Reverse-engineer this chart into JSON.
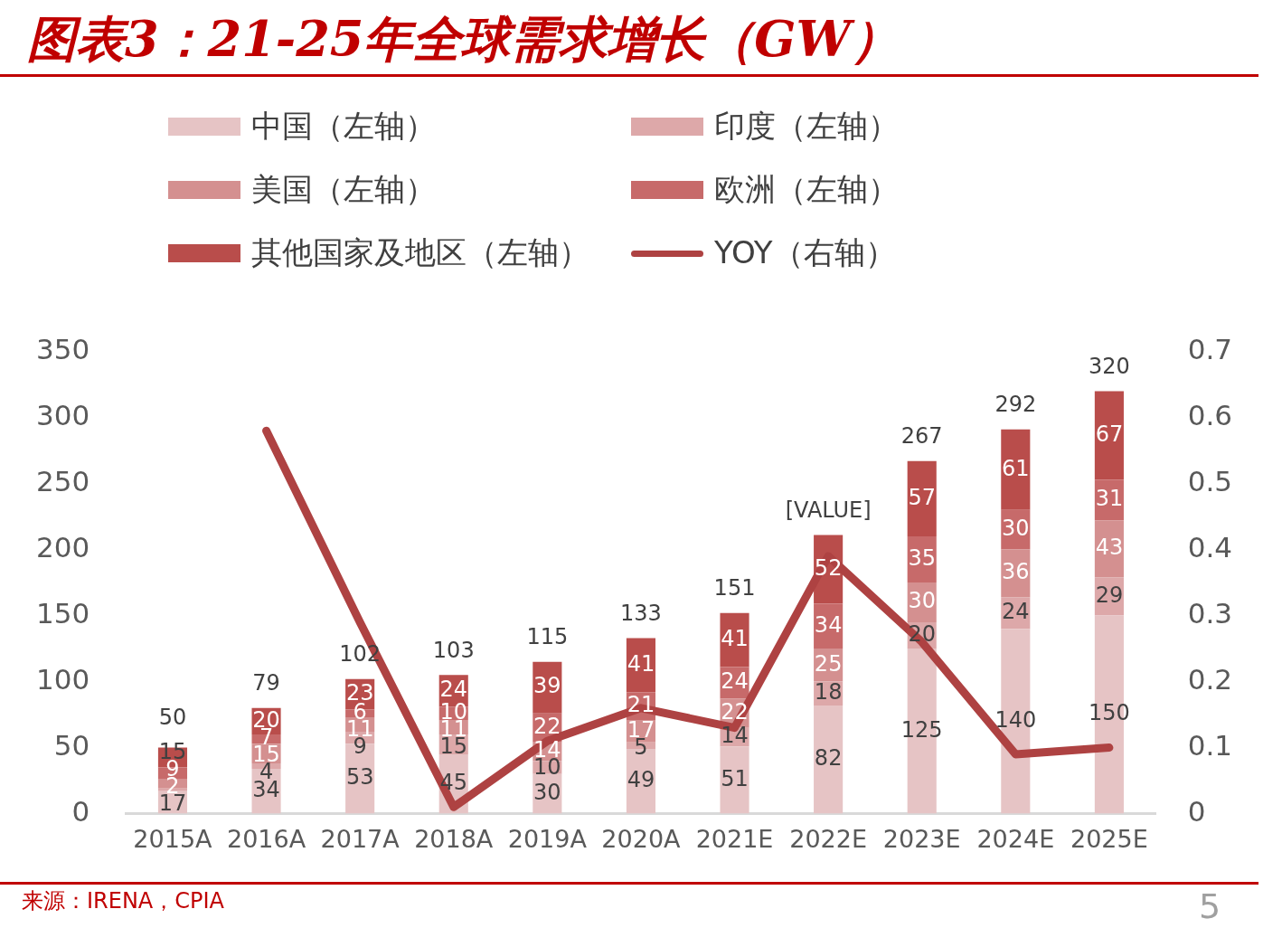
{
  "chart_data": {
    "type": "bar",
    "stacked": true,
    "title": "图表3：21-25年全球需求增长（GW）",
    "categories": [
      "2015A",
      "2016A",
      "2017A",
      "2018A",
      "2019A",
      "2020A",
      "2021E",
      "2022E",
      "2023E",
      "2024E",
      "2025E"
    ],
    "series": [
      {
        "name": "中国（左轴）",
        "color": "#e6c4c5",
        "values": [
          17,
          34,
          53,
          45,
          30,
          49,
          51,
          82,
          125,
          140,
          150
        ],
        "value_labels": [
          "17",
          "34",
          "53",
          "45",
          "30",
          "49",
          "51",
          "82",
          "125",
          "140",
          "150"
        ]
      },
      {
        "name": "印度（左轴）",
        "color": "#dda8a9",
        "values": [
          2,
          4,
          9,
          15,
          10,
          5,
          14,
          18,
          20,
          24,
          29
        ],
        "value_labels": [
          "2",
          "4",
          "9",
          "15",
          "10",
          "5",
          "14",
          "18",
          "20",
          "24",
          "29"
        ]
      },
      {
        "name": "美国（左轴）",
        "color": "#d49090",
        "values": [
          7,
          15,
          11,
          11,
          14,
          17,
          22,
          25,
          30,
          36,
          43
        ],
        "value_labels": [
          null,
          "15",
          "11",
          "11",
          "14",
          "17",
          "22",
          "25",
          "30",
          "36",
          "43"
        ]
      },
      {
        "name": "欧洲（左轴）",
        "color": "#c76a6a",
        "values": [
          9,
          7,
          6,
          10,
          22,
          21,
          24,
          34,
          35,
          30,
          31
        ],
        "value_labels": [
          "9",
          "7",
          "6",
          "10",
          "22",
          "21",
          "24",
          "34",
          "35",
          "30",
          "31"
        ]
      },
      {
        "name": "其他国家及地区（左轴）",
        "color": "#b94d4b",
        "values": [
          15,
          20,
          23,
          24,
          39,
          41,
          41,
          52,
          57,
          61,
          67
        ],
        "value_labels": [
          "15",
          "20",
          "23",
          "24",
          "39",
          "41",
          "41",
          "52",
          "57",
          "61",
          "67"
        ]
      },
      {
        "name": "YOY（右轴）",
        "type": "line",
        "axis": "y2",
        "color": "#ae4242",
        "values": [
          null,
          0.58,
          0.29,
          0.01,
          0.11,
          0.16,
          0.13,
          0.39,
          0.26,
          0.09,
          0.1
        ]
      }
    ],
    "totals": [
      "50",
      "79",
      "102",
      "103",
      "115",
      "133",
      "151",
      "[VALUE]",
      "267",
      "292",
      "320"
    ],
    "ylim": [
      0,
      350
    ],
    "yticks": [
      0,
      50,
      100,
      150,
      200,
      250,
      300,
      350
    ],
    "y2lim": [
      0,
      0.7
    ],
    "y2ticks": [
      0,
      0.1,
      0.2,
      0.3,
      0.4,
      0.5,
      0.6,
      0.7
    ],
    "grid": false,
    "legend": "top",
    "marker": "none",
    "annotations": [
      "来源：IRENA，CPIA",
      "5"
    ]
  }
}
